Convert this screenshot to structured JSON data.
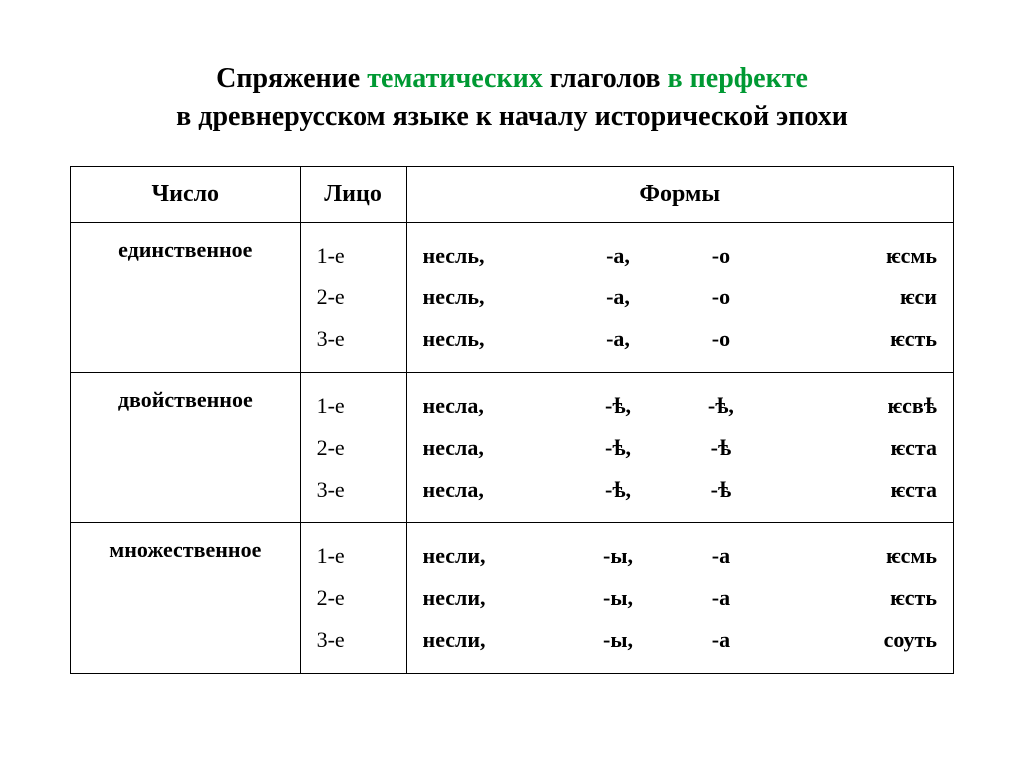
{
  "title": {
    "l1_a": "Спряжение ",
    "l1_b": "тематических",
    "l1_c": " глаголов ",
    "l1_d": "в перфекте",
    "l2": "в древнерусском языке к началу исторической эпохи"
  },
  "headers": {
    "num": "Число",
    "face": "Лицо",
    "forms": "Формы"
  },
  "rows": [
    {
      "num": "единственное",
      "face": [
        "1-е",
        "2-е",
        "3-е"
      ],
      "forms": [
        [
          "несль,",
          "-а,",
          "-о",
          "ѥсмь"
        ],
        [
          "несль,",
          "-а,",
          "-о",
          "ѥси"
        ],
        [
          "несль,",
          "-а,",
          "-о",
          "ѥсть"
        ]
      ]
    },
    {
      "num": "двойственное",
      "face": [
        "1-е",
        "2-е",
        "3-е"
      ],
      "forms": [
        [
          "несла,",
          "-ѣ,",
          "-ѣ,",
          "ѥсвѣ"
        ],
        [
          "несла,",
          "-ѣ,",
          "-ѣ",
          "ѥста"
        ],
        [
          "несла,",
          "-ѣ,",
          "-ѣ",
          "ѥста"
        ]
      ]
    },
    {
      "num": "множественное",
      "face": [
        "1-е",
        "2-е",
        "3-е"
      ],
      "forms": [
        [
          "несли,",
          "-ы,",
          "-а",
          "ѥсмь"
        ],
        [
          "несли,",
          "-ы,",
          "-а",
          "ѥсть"
        ],
        [
          "несли,",
          "-ы,",
          "-а",
          "соуть"
        ]
      ]
    }
  ]
}
